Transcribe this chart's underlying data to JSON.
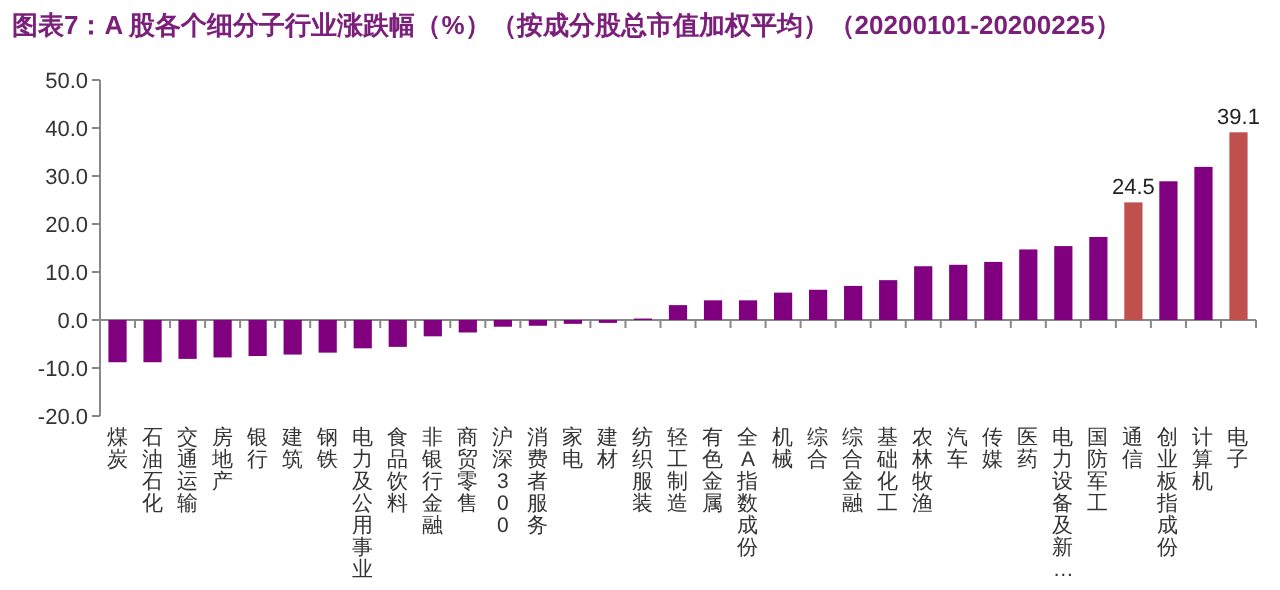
{
  "chart_data": {
    "type": "bar",
    "title": "图表7：A 股各个细分子行业涨跌幅（%）（按成分股总市值加权平均）（20200101-20200225）",
    "categories": [
      "煤炭",
      "石油石化",
      "交通运输",
      "房地产",
      "银行",
      "建筑",
      "钢铁",
      "电力及公用事业",
      "食品饮料",
      "非银行金融",
      "商贸零售",
      "沪深300",
      "消费者服务",
      "家电",
      "建材",
      "纺织服装",
      "轻工制造",
      "有色金属",
      "全A指数成份",
      "机械",
      "综合",
      "综合金融",
      "基础化工",
      "农林牧渔",
      "汽车",
      "传媒",
      "医药",
      "电力设备及新…",
      "国防军工",
      "通信",
      "创业板指成份",
      "计算机",
      "电子"
    ],
    "values": [
      -8.8,
      -8.8,
      -8.1,
      -7.8,
      -7.5,
      -7.2,
      -6.8,
      -5.9,
      -5.6,
      -3.4,
      -2.6,
      -1.4,
      -1.2,
      -0.8,
      -0.6,
      0.3,
      3.1,
      4.1,
      4.1,
      5.7,
      6.3,
      7.1,
      8.3,
      11.2,
      11.5,
      12.1,
      14.7,
      15.4,
      17.3,
      24.5,
      28.9,
      31.9,
      39.1
    ],
    "colors": [
      "#800080",
      "#800080",
      "#800080",
      "#800080",
      "#800080",
      "#800080",
      "#800080",
      "#800080",
      "#800080",
      "#800080",
      "#800080",
      "#800080",
      "#800080",
      "#800080",
      "#800080",
      "#800080",
      "#800080",
      "#800080",
      "#800080",
      "#800080",
      "#800080",
      "#800080",
      "#800080",
      "#800080",
      "#800080",
      "#800080",
      "#800080",
      "#800080",
      "#800080",
      "#c0504d",
      "#800080",
      "#800080",
      "#c0504d"
    ],
    "value_labels": [
      null,
      null,
      null,
      null,
      null,
      null,
      null,
      null,
      null,
      null,
      null,
      null,
      null,
      null,
      null,
      null,
      null,
      null,
      null,
      null,
      null,
      null,
      null,
      null,
      null,
      null,
      null,
      null,
      null,
      "24.5",
      null,
      null,
      "39.1"
    ],
    "ylim": [
      -20,
      50
    ],
    "yticks": [
      {
        "value": -20,
        "label": "-20.0"
      },
      {
        "value": -10,
        "label": "-10.0"
      },
      {
        "value": 0,
        "label": "0.0"
      },
      {
        "value": 10,
        "label": "10.0"
      },
      {
        "value": 20,
        "label": "20.0"
      },
      {
        "value": 30,
        "label": "30.0"
      },
      {
        "value": 40,
        "label": "40.0"
      },
      {
        "value": 50,
        "label": "50.0"
      }
    ]
  }
}
